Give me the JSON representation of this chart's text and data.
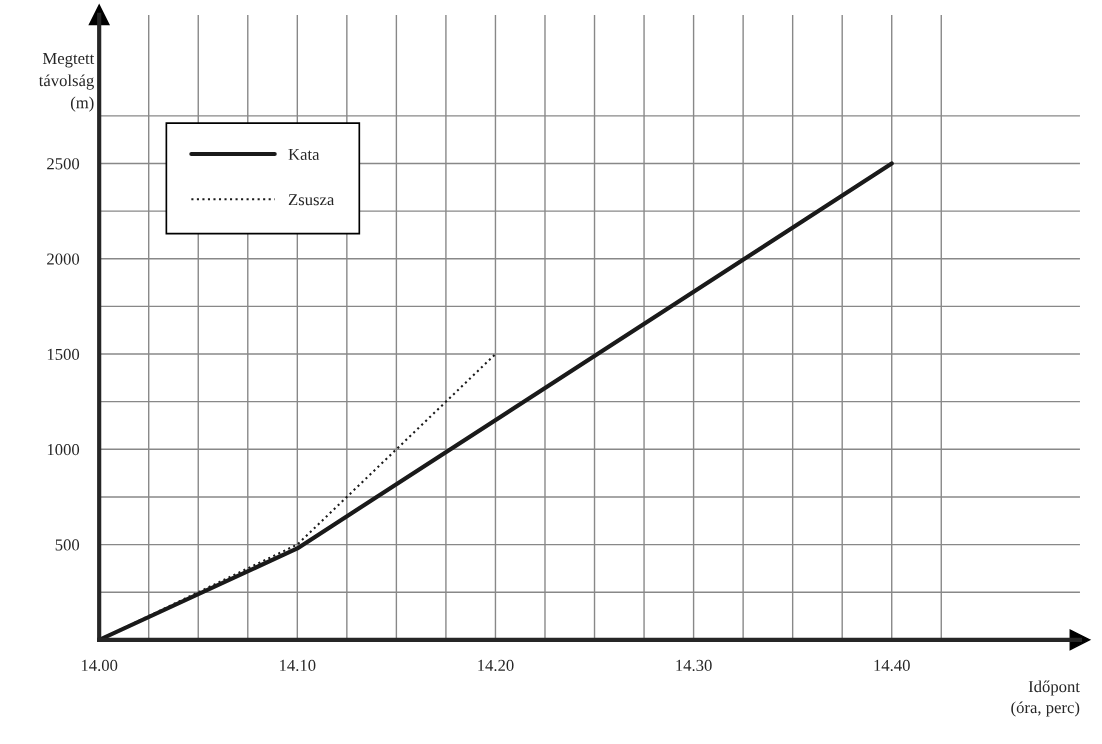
{
  "chart_data": {
    "type": "line",
    "xlabel": "Időpont\n(óra, perc)",
    "ylabel": "Megtett\ntávolság\n(m)",
    "series": [
      {
        "name": "Kata",
        "color": "#1a1a1a",
        "x": [
          14,
          14.1,
          14.4
        ],
        "values": [
          0,
          480,
          2500
        ],
        "line_style": "solid"
      },
      {
        "name": "Zsusza",
        "color": "#1a1a1a",
        "x": [
          14,
          14.1,
          14.2
        ],
        "values": [
          0,
          500,
          1500
        ],
        "line_style": "dotted"
      }
    ],
    "xlim": [
      14,
      14.495
    ],
    "ylim": [
      0,
      3280
    ],
    "xticks": [
      {
        "value": 14,
        "label": "14.00"
      },
      {
        "value": 14.025,
        "label": null
      },
      {
        "value": 14.05,
        "label": null
      },
      {
        "value": 14.075,
        "label": null
      },
      {
        "value": 14.1,
        "label": "14.10"
      },
      {
        "value": 14.125,
        "label": null
      },
      {
        "value": 14.15,
        "label": null
      },
      {
        "value": 14.175,
        "label": null
      },
      {
        "value": 14.2,
        "label": "14.20"
      },
      {
        "value": 14.225,
        "label": null
      },
      {
        "value": 14.25,
        "label": null
      },
      {
        "value": 14.275,
        "label": null
      },
      {
        "value": 14.3,
        "label": "14.30"
      },
      {
        "value": 14.325,
        "label": null
      },
      {
        "value": 14.35,
        "label": null
      },
      {
        "value": 14.375,
        "label": null
      },
      {
        "value": 14.4,
        "label": "14.40"
      },
      {
        "value": 14.425,
        "label": null
      }
    ],
    "yticks": [
      {
        "value": 250,
        "label": null
      },
      500,
      {
        "value": 750,
        "label": null
      },
      1000,
      {
        "value": 1250,
        "label": null
      },
      1500,
      {
        "value": 1750,
        "label": null
      },
      2000,
      {
        "value": 2250,
        "label": null
      },
      2500,
      {
        "value": 2750,
        "label": null
      }
    ],
    "grid": true,
    "legend": "top left"
  }
}
